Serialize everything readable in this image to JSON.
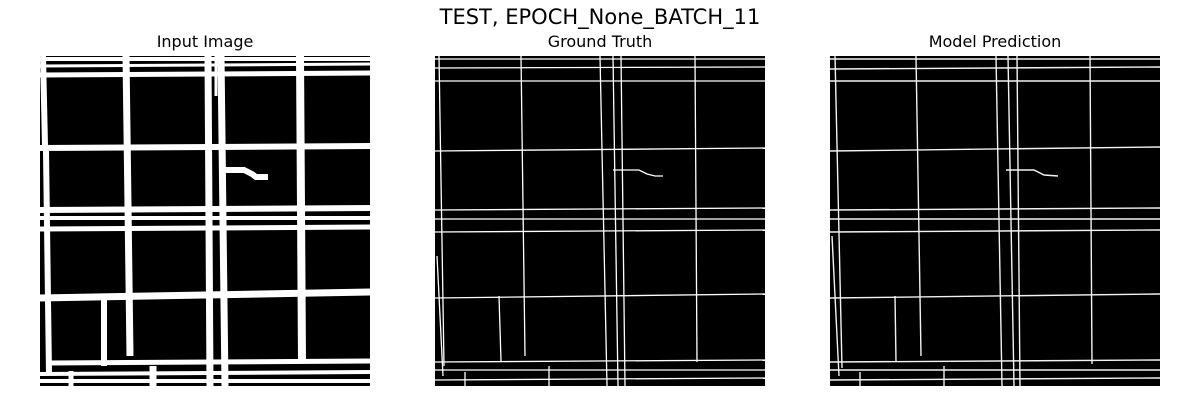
{
  "figure": {
    "suptitle": "TEST, EPOCH_None_BATCH_11",
    "panels": [
      {
        "title": "Input Image"
      },
      {
        "title": "Ground Truth"
      },
      {
        "title": "Model Prediction"
      }
    ]
  },
  "colors": {
    "background": "#ffffff",
    "image_background": "#000000",
    "line": "#ffffff"
  }
}
